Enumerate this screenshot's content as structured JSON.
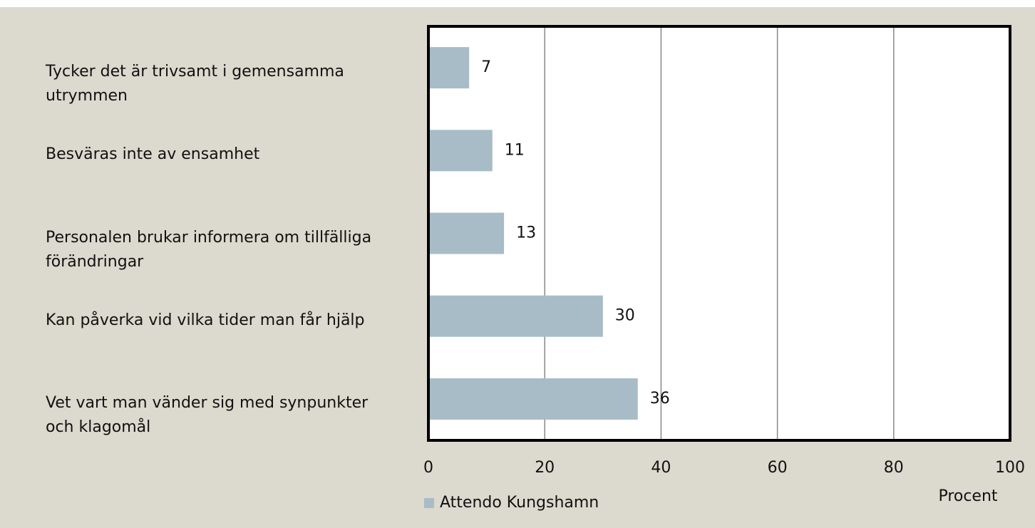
{
  "chart_data": {
    "type": "bar",
    "orientation": "horizontal",
    "categories": [
      "Tycker det är trivsamt i gemensamma utrymmen",
      "Besväras inte av ensamhet",
      "Personalen brukar informera om tillfälliga förändringar",
      "Kan påverka vid vilka tider man får hjälp",
      "Vet vart man vänder sig med synpunkter och klagomål"
    ],
    "series": [
      {
        "name": "Attendo Kungshamn",
        "color": "#a7bcc6",
        "values": [
          7,
          11,
          13,
          30,
          36
        ]
      }
    ],
    "xlim": [
      0,
      100
    ],
    "xticks": [
      0,
      20,
      40,
      60,
      80,
      100
    ],
    "x_label": "Procent",
    "grid": true
  }
}
